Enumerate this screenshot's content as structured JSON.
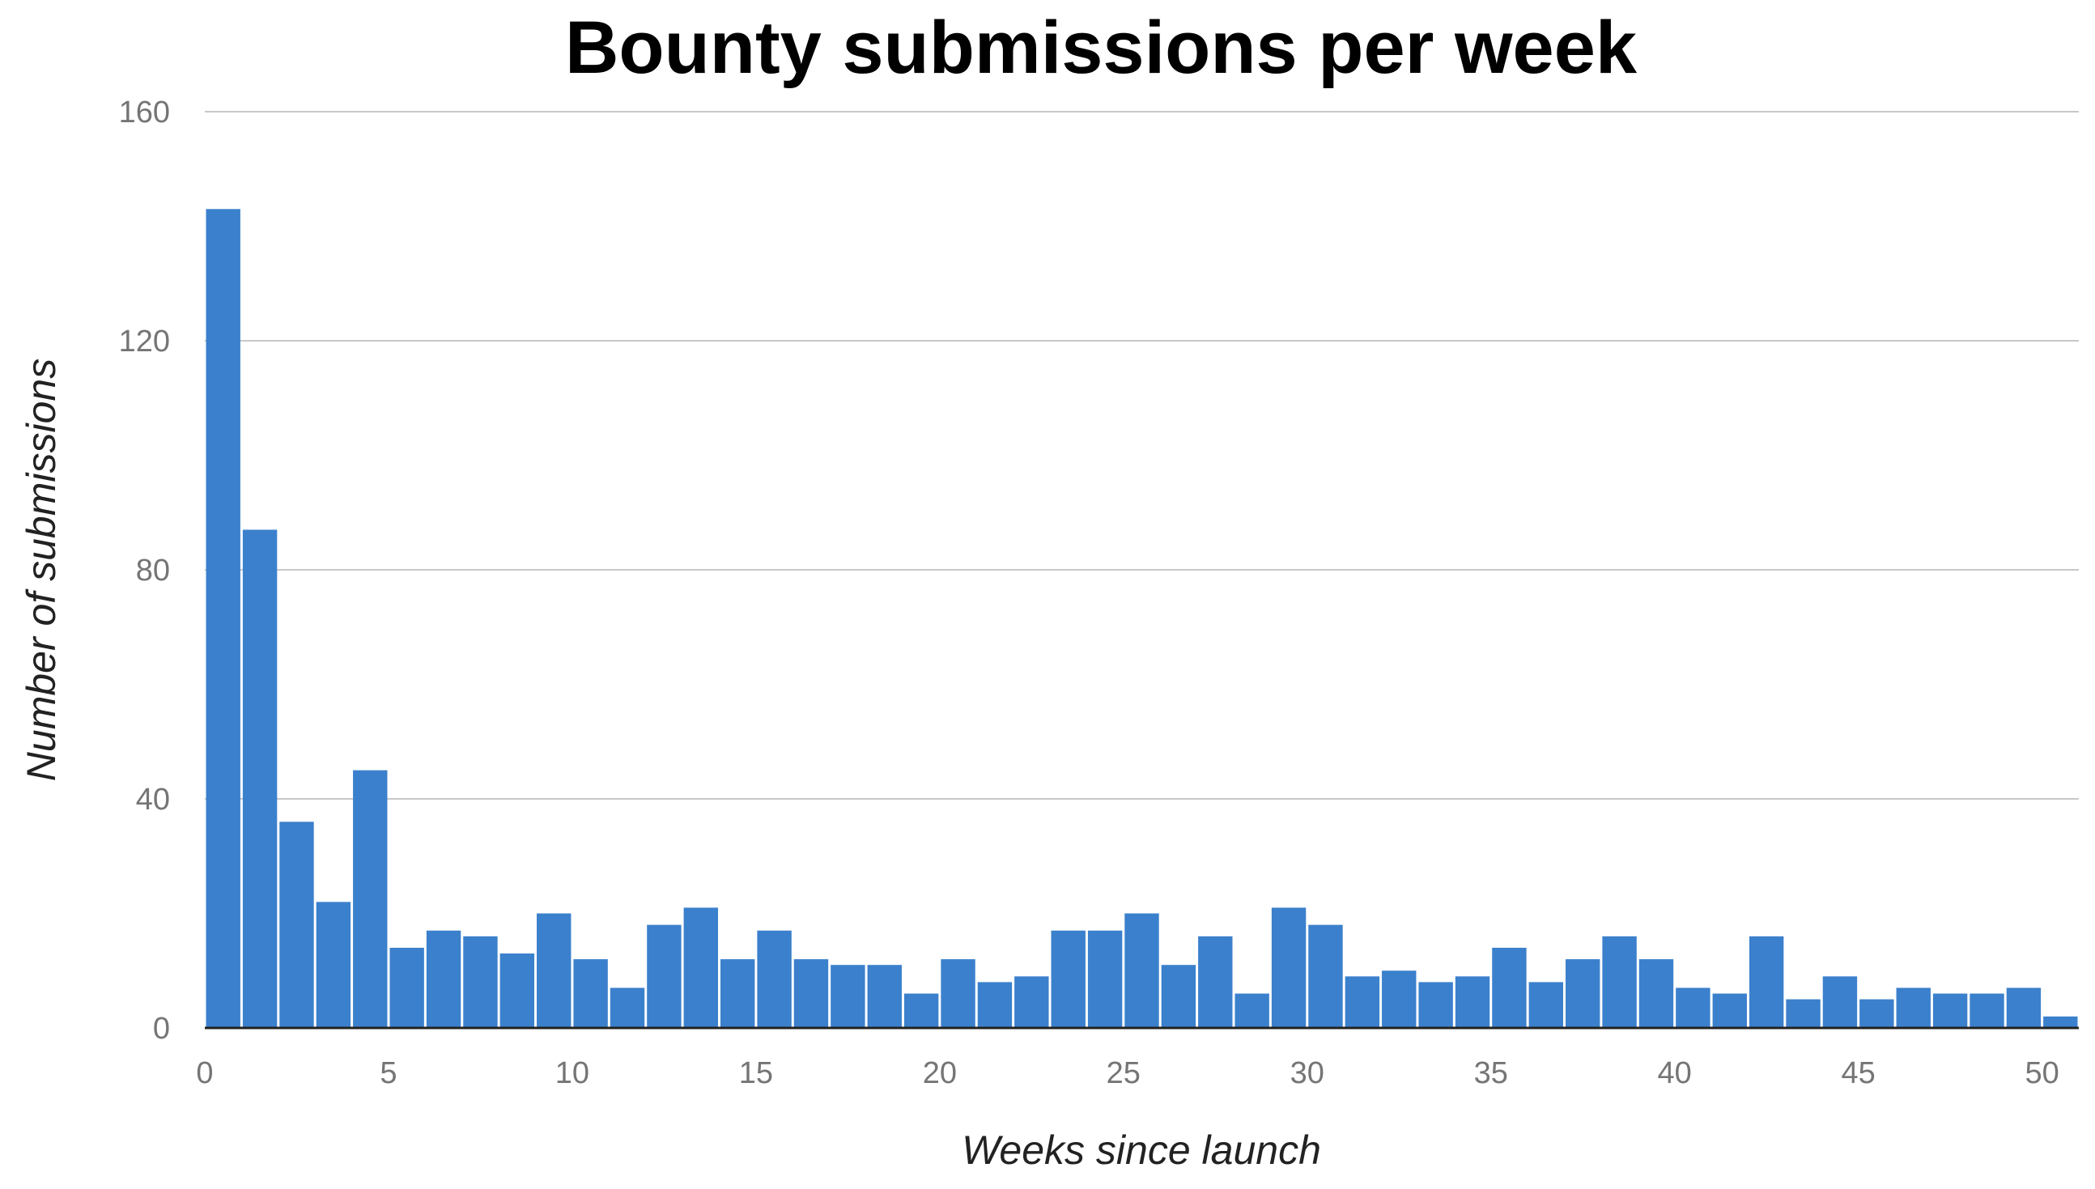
{
  "chart_data": {
    "type": "bar",
    "title": "Bounty submissions per week",
    "xlabel": "Weeks since launch",
    "ylabel": "Number of submissions",
    "x": [
      0,
      1,
      2,
      3,
      4,
      5,
      6,
      7,
      8,
      9,
      10,
      11,
      12,
      13,
      14,
      15,
      16,
      17,
      18,
      19,
      20,
      21,
      22,
      23,
      24,
      25,
      26,
      27,
      28,
      29,
      30,
      31,
      32,
      33,
      34,
      35,
      36,
      37,
      38,
      39,
      40,
      41,
      42,
      43,
      44,
      45,
      46,
      47,
      48,
      49,
      50
    ],
    "values": [
      143,
      87,
      36,
      22,
      45,
      14,
      17,
      16,
      13,
      20,
      12,
      7,
      18,
      21,
      12,
      17,
      12,
      11,
      11,
      6,
      12,
      8,
      9,
      17,
      17,
      20,
      11,
      16,
      6,
      21,
      18,
      9,
      10,
      8,
      9,
      14,
      8,
      12,
      16,
      12,
      7,
      6,
      16,
      5,
      9,
      5,
      7,
      6,
      6,
      7,
      2
    ],
    "xlim": [
      0,
      51
    ],
    "ylim": [
      0,
      160
    ],
    "x_ticks": [
      "0",
      "5",
      "10",
      "15",
      "20",
      "25",
      "30",
      "35",
      "40",
      "45",
      "50"
    ],
    "x_tick_values": [
      0,
      5,
      10,
      15,
      20,
      25,
      30,
      35,
      40,
      45,
      50
    ],
    "y_ticks": [
      "0",
      "40",
      "80",
      "120",
      "160"
    ],
    "y_tick_values": [
      0,
      40,
      80,
      120,
      160
    ],
    "grid": "horizontal",
    "bar_color": "#3b80cc",
    "grid_color": "#c8c8c8",
    "axis_color": "#222222"
  }
}
